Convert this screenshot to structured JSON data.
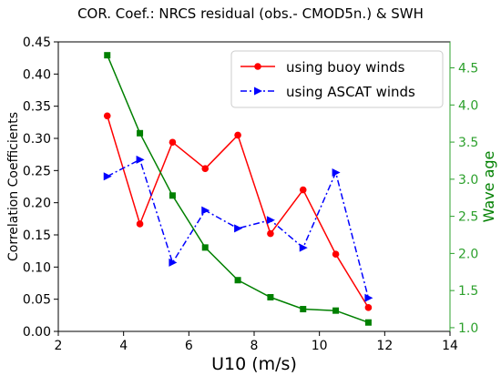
{
  "chart_data": {
    "type": "line",
    "title": "COR. Coef.: NRCS residual (obs.- CMOD5n.) & SWH",
    "xlabel": "U10 (m/s)",
    "ylabel": "Correlation Coefficients",
    "ylabel_right": "Wave age",
    "xlim": [
      2,
      14
    ],
    "ylim": [
      0,
      0.45
    ],
    "ylim_right": [
      0.95,
      4.85
    ],
    "x_ticks": [
      "2",
      "4",
      "6",
      "8",
      "10",
      "12",
      "14"
    ],
    "y_ticks": [
      "0.00",
      "0.05",
      "0.10",
      "0.15",
      "0.20",
      "0.25",
      "0.30",
      "0.35",
      "0.40",
      "0.45"
    ],
    "y_ticks_right": [
      "1.0",
      "1.5",
      "2.0",
      "2.5",
      "3.0",
      "3.5",
      "4.0",
      "4.5"
    ],
    "grid": false,
    "legend_position": "top-right",
    "x": [
      3.5,
      4.5,
      5.5,
      6.5,
      7.5,
      8.5,
      9.5,
      10.5,
      11.5
    ],
    "series": [
      {
        "name": "using buoy winds",
        "axis": "left",
        "color": "#ff0000",
        "marker": "circle",
        "line_style": "solid",
        "values": [
          0.335,
          0.167,
          0.294,
          0.253,
          0.305,
          0.152,
          0.22,
          0.12,
          0.037
        ]
      },
      {
        "name": "using ASCAT winds",
        "axis": "left",
        "color": "#0000ff",
        "marker": "triangle-right",
        "line_style": "dash-dot",
        "values": [
          0.241,
          0.267,
          0.107,
          0.188,
          0.16,
          0.173,
          0.13,
          0.247,
          0.052
        ]
      },
      {
        "name": "",
        "axis": "right",
        "color": "#008000",
        "marker": "square",
        "line_style": "solid",
        "values": [
          4.67,
          3.62,
          2.78,
          2.08,
          1.64,
          1.41,
          1.25,
          1.23,
          1.07
        ]
      }
    ]
  }
}
